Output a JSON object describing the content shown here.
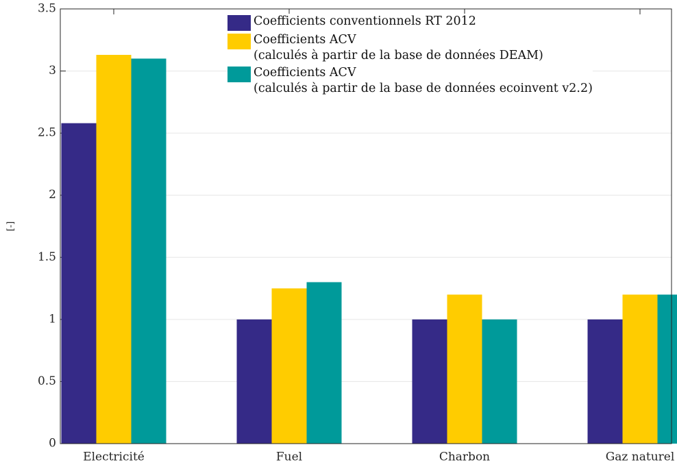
{
  "chart_data": {
    "type": "bar",
    "ylabel": "[-]",
    "categories": [
      "Electricité",
      "Fuel",
      "Charbon",
      "Gaz naturel"
    ],
    "series": [
      {
        "name": "Coefficients conventionnels RT 2012",
        "color": "#352a87",
        "values": [
          2.58,
          1,
          1,
          1
        ]
      },
      {
        "name": "Coefficients ACV\n(calculés à partir de la base de données DEAM)",
        "color": "#ffcc00",
        "values": [
          3.13,
          1.25,
          1.2,
          1.2
        ]
      },
      {
        "name": "Coefficients ACV\n(calculés à partir de la base de données ecoinvent v2.2)",
        "color": "#009a9a",
        "values": [
          3.1,
          1.3,
          1,
          1.2
        ]
      }
    ],
    "ylim": [
      0,
      3.5
    ],
    "yticks": [
      0,
      0.5,
      1,
      1.5,
      2,
      2.5,
      3,
      3.5
    ],
    "grid": true,
    "legend": "upper right"
  }
}
